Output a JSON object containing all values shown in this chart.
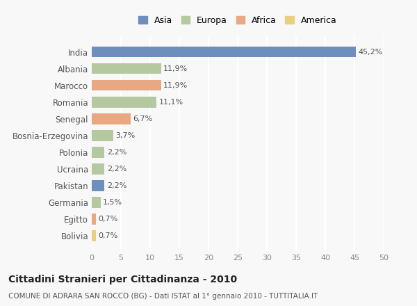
{
  "countries": [
    "India",
    "Albania",
    "Marocco",
    "Romania",
    "Senegal",
    "Bosnia-Erzegovina",
    "Polonia",
    "Ucraina",
    "Pakistan",
    "Germania",
    "Egitto",
    "Bolivia"
  ],
  "values": [
    45.2,
    11.9,
    11.9,
    11.1,
    6.7,
    3.7,
    2.2,
    2.2,
    2.2,
    1.5,
    0.7,
    0.7
  ],
  "labels": [
    "45,2%",
    "11,9%",
    "11,9%",
    "11,1%",
    "6,7%",
    "3,7%",
    "2,2%",
    "2,2%",
    "2,2%",
    "1,5%",
    "0,7%",
    "0,7%"
  ],
  "continents": [
    "Asia",
    "Europa",
    "Africa",
    "Europa",
    "Africa",
    "Europa",
    "Europa",
    "Europa",
    "Asia",
    "Europa",
    "Africa",
    "America"
  ],
  "colors": {
    "Asia": "#6e8fbc",
    "Europa": "#b5c9a0",
    "Africa": "#e8a882",
    "America": "#e8d080"
  },
  "legend_order": [
    "Asia",
    "Europa",
    "Africa",
    "America"
  ],
  "legend_colors": [
    "#6e8fbc",
    "#b5c9a0",
    "#e8a882",
    "#e8d080"
  ],
  "xlim": [
    0,
    50
  ],
  "xticks": [
    0,
    5,
    10,
    15,
    20,
    25,
    30,
    35,
    40,
    45,
    50
  ],
  "title": "Cittadini Stranieri per Cittadinanza - 2010",
  "subtitle": "COMUNE DI ADRARA SAN ROCCO (BG) - Dati ISTAT al 1° gennaio 2010 - TUTTITALIA.IT",
  "background_color": "#f8f8f8",
  "grid_color": "#ffffff",
  "bar_height": 0.65
}
